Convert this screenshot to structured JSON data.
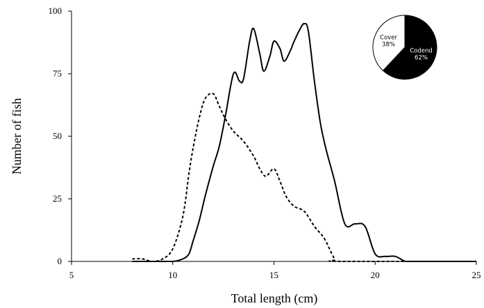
{
  "chart_data": {
    "type": "line",
    "xlabel": "Total length (cm)",
    "ylabel": "Number of fish",
    "xlim": [
      5,
      25
    ],
    "ylim": [
      0,
      100
    ],
    "x_ticks": [
      "5",
      "10",
      "15",
      "20",
      "25"
    ],
    "y_ticks": [
      "0",
      "25",
      "50",
      "75",
      "100"
    ],
    "grid": false,
    "series": [
      {
        "style": "solid",
        "color": "#000000",
        "points": [
          [
            8,
            0
          ],
          [
            9,
            0
          ],
          [
            10,
            0
          ],
          [
            10.5,
            1
          ],
          [
            10.8,
            3
          ],
          [
            11,
            8
          ],
          [
            11.3,
            16
          ],
          [
            11.6,
            26
          ],
          [
            12,
            38
          ],
          [
            12.3,
            46
          ],
          [
            12.6,
            58
          ],
          [
            13,
            75
          ],
          [
            13.3,
            72
          ],
          [
            13.5,
            73
          ],
          [
            13.8,
            88
          ],
          [
            14,
            93
          ],
          [
            14.3,
            83
          ],
          [
            14.5,
            76
          ],
          [
            14.8,
            82
          ],
          [
            15,
            88
          ],
          [
            15.3,
            85
          ],
          [
            15.5,
            80
          ],
          [
            15.8,
            84
          ],
          [
            16,
            88
          ],
          [
            16.3,
            93
          ],
          [
            16.5,
            95
          ],
          [
            16.7,
            92
          ],
          [
            17,
            72
          ],
          [
            17.3,
            55
          ],
          [
            17.6,
            44
          ],
          [
            18,
            32
          ],
          [
            18.5,
            15
          ],
          [
            19,
            15
          ],
          [
            19.5,
            14
          ],
          [
            20,
            3
          ],
          [
            20.5,
            2
          ],
          [
            21,
            2
          ],
          [
            21.5,
            0
          ],
          [
            22,
            0
          ],
          [
            25,
            0
          ]
        ]
      },
      {
        "style": "dashed",
        "color": "#000000",
        "points": [
          [
            8,
            1
          ],
          [
            8.5,
            1
          ],
          [
            9,
            0
          ],
          [
            9.5,
            1
          ],
          [
            10,
            5
          ],
          [
            10.5,
            18
          ],
          [
            10.8,
            35
          ],
          [
            11,
            45
          ],
          [
            11.3,
            57
          ],
          [
            11.6,
            65
          ],
          [
            12,
            67
          ],
          [
            12.3,
            62
          ],
          [
            12.6,
            57
          ],
          [
            13,
            52
          ],
          [
            13.5,
            48
          ],
          [
            14,
            42
          ],
          [
            14.3,
            37
          ],
          [
            14.6,
            34
          ],
          [
            15,
            37
          ],
          [
            15.3,
            32
          ],
          [
            15.6,
            26
          ],
          [
            16,
            22
          ],
          [
            16.5,
            20
          ],
          [
            17,
            14
          ],
          [
            17.5,
            9
          ],
          [
            18,
            1
          ],
          [
            18.3,
            0
          ],
          [
            25,
            0
          ]
        ]
      }
    ],
    "inset_pie": {
      "type": "pie",
      "slices": [
        {
          "label": "Codend",
          "percent_label": "62%",
          "value": 62,
          "color": "#000000",
          "text_color": "#ffffff"
        },
        {
          "label": "Cover",
          "percent_label": "38%",
          "value": 38,
          "color": "#ffffff",
          "text_color": "#000000"
        }
      ]
    }
  }
}
